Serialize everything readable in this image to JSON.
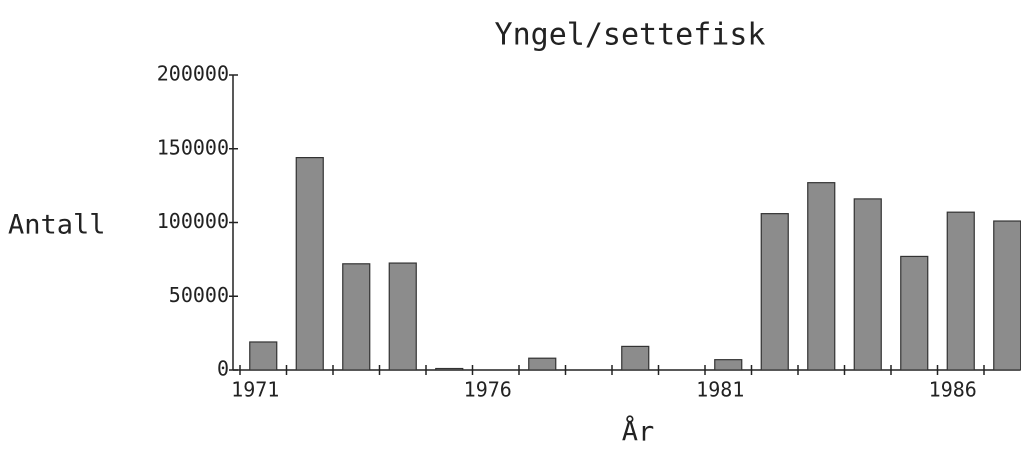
{
  "chart_data": {
    "type": "bar",
    "title": "Yngel/settefisk",
    "x_label": "År",
    "y_label": "Antall",
    "categories": [
      "1971",
      null,
      null,
      null,
      null,
      "1976",
      null,
      null,
      null,
      null,
      "1981",
      null,
      null,
      null,
      null,
      "1986",
      null
    ],
    "values": [
      19000,
      144000,
      72000,
      72500,
      1000,
      0,
      8000,
      0,
      16000,
      0,
      7000,
      106000,
      127000,
      116000,
      77000,
      107000,
      101000
    ],
    "color": "#8c8c8c",
    "ylim": [
      0,
      200000
    ],
    "yticks": [
      0,
      50000,
      100000,
      150000,
      200000
    ],
    "grid": false
  }
}
